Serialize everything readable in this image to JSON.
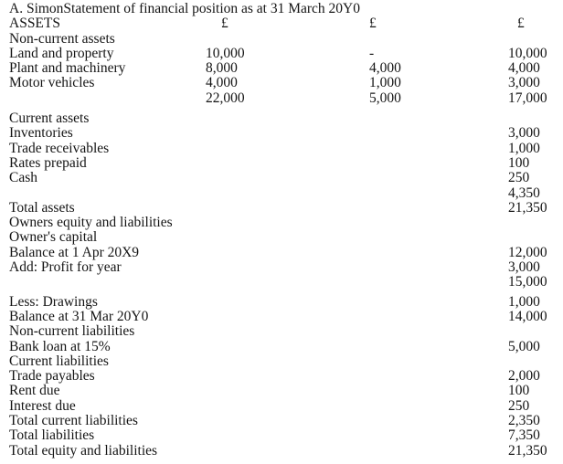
{
  "page": {
    "background_color": "#ffffff",
    "text_color": "#141414"
  },
  "document": {
    "title": "A. SimonStatement of financial position as at 31 March 20Y0",
    "header": {
      "label": "ASSETS",
      "col1": "£",
      "col2": "£",
      "col3": "£"
    },
    "rows": [
      {
        "label": "Non-current assets"
      },
      {
        "label": "Land and property",
        "col1": "10,000",
        "col2": "-",
        "col3": "10,000"
      },
      {
        "label": "Plant and machinery",
        "col1": "8,000",
        "col2": "4,000",
        "col3": "4,000"
      },
      {
        "label": "Motor vehicles",
        "col1": "4,000",
        "col2": "1,000",
        "col3": "3,000"
      },
      {
        "label": "",
        "col1": "22,000",
        "col2": "5,000",
        "col3": "17,000"
      },
      {
        "label": "Current assets",
        "gap_before": "large"
      },
      {
        "label": "Inventories",
        "col3": "3,000"
      },
      {
        "label": "Trade receivables",
        "col3": "1,000"
      },
      {
        "label": "Rates prepaid",
        "col3": "100"
      },
      {
        "label": "Cash",
        "col3": "250"
      },
      {
        "label": "",
        "col3": "4,350"
      },
      {
        "label": "Total assets",
        "col3": "21,350"
      },
      {
        "label": "Owners equity and liabilities"
      },
      {
        "label": "Owner's capital"
      },
      {
        "label": "Balance at 1 Apr 20X9",
        "col3": "12,000"
      },
      {
        "label": "Add: Profit for year",
        "col3": "3,000"
      },
      {
        "label": "",
        "col3": "15,000"
      },
      {
        "label": "Less: Drawings",
        "col3": "1,000",
        "gap_before": "small"
      },
      {
        "label": "Balance at 31 Mar 20Y0",
        "col3": "14,000"
      },
      {
        "label": "Non-current liabilities"
      },
      {
        "label": "Bank loan at 15%",
        "col3": "5,000"
      },
      {
        "label": "Current liabilities"
      },
      {
        "label": "Trade payables",
        "col3": "2,000"
      },
      {
        "label": "Rent due",
        "col3": "100"
      },
      {
        "label": "Interest due",
        "col3": "250"
      },
      {
        "label": "Total current liabilities",
        "col3": "2,350"
      },
      {
        "label": "Total liabilities",
        "col3": "7,350"
      },
      {
        "label": "Total equity and liabilities",
        "col3": "21,350"
      }
    ]
  }
}
